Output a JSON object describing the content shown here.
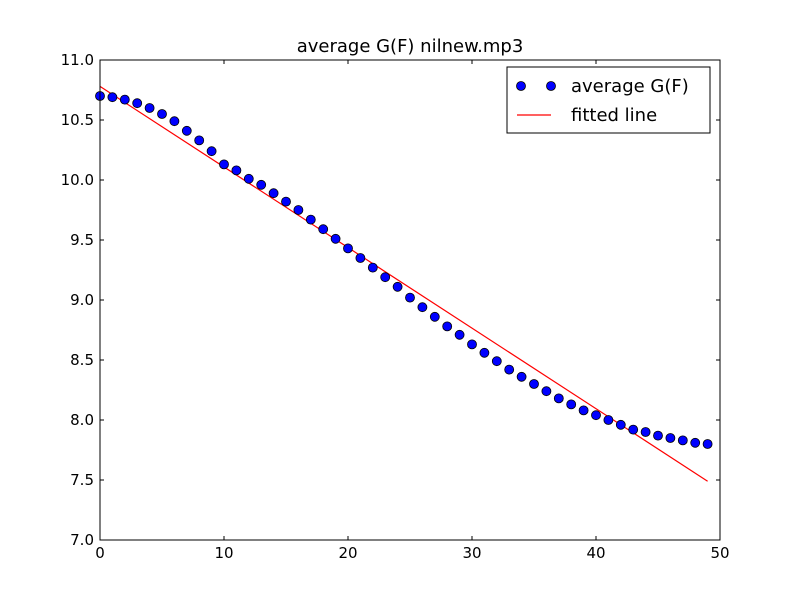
{
  "chart_data": {
    "type": "scatter",
    "title": "average G(F) nilnew.mp3",
    "xlabel": "",
    "ylabel": "",
    "xlim": [
      0,
      50
    ],
    "ylim": [
      7.0,
      11.0
    ],
    "xticks": [
      "0",
      "10",
      "20",
      "30",
      "40",
      "50"
    ],
    "yticks": [
      "7.0",
      "7.5",
      "8.0",
      "8.5",
      "9.0",
      "9.5",
      "10.0",
      "10.5",
      "11.0"
    ],
    "grid": false,
    "legend_position": "top-right",
    "series": [
      {
        "name": "average G(F)",
        "kind": "points",
        "color": "#0000ff",
        "x": [
          0,
          1,
          2,
          3,
          4,
          5,
          6,
          7,
          8,
          9,
          10,
          11,
          12,
          13,
          14,
          15,
          16,
          17,
          18,
          19,
          20,
          21,
          22,
          23,
          24,
          25,
          26,
          27,
          28,
          29,
          30,
          31,
          32,
          33,
          34,
          35,
          36,
          37,
          38,
          39,
          40,
          41,
          42,
          43,
          44,
          45,
          46,
          47,
          48,
          49
        ],
        "y": [
          10.7,
          10.69,
          10.67,
          10.64,
          10.6,
          10.55,
          10.49,
          10.41,
          10.33,
          10.24,
          10.13,
          10.08,
          10.01,
          9.96,
          9.89,
          9.82,
          9.75,
          9.67,
          9.59,
          9.51,
          9.43,
          9.35,
          9.27,
          9.19,
          9.11,
          9.02,
          8.94,
          8.86,
          8.78,
          8.71,
          8.63,
          8.56,
          8.49,
          8.42,
          8.36,
          8.3,
          8.24,
          8.18,
          8.13,
          8.08,
          8.04,
          8.0,
          7.96,
          7.92,
          7.9,
          7.87,
          7.85,
          7.83,
          7.81,
          7.8
        ]
      },
      {
        "name": "fitted line",
        "kind": "line",
        "color": "#ff0000",
        "x": [
          0,
          49
        ],
        "y": [
          10.78,
          7.49
        ]
      }
    ]
  }
}
